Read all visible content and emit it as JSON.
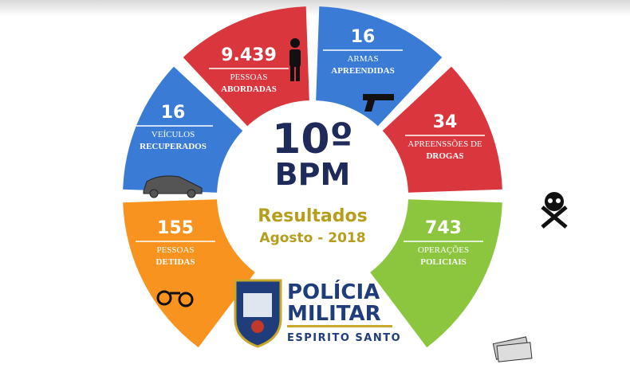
{
  "center": {
    "title_line1": "10º",
    "title_line2": "BPM",
    "subtitle": "Resultados",
    "period": "Agosto - 2018"
  },
  "segments": [
    {
      "value": "9.439",
      "label_top": "PESSOAS",
      "label_bottom": "ABORDADAS"
    },
    {
      "value": "16",
      "label_top": "ARMAS",
      "label_bottom": "APREENDIDAS"
    },
    {
      "value": "16",
      "label_top": "VEÍCULOS",
      "label_bottom": "RECUPERADOS"
    },
    {
      "value": "34",
      "label_top": "APREENSSÕES DE",
      "label_bottom": "DROGAS"
    },
    {
      "value": "155",
      "label_top": "PESSOAS",
      "label_bottom": "DETIDAS"
    },
    {
      "value": "743",
      "label_top": "OPERAÇÕES",
      "label_bottom": "POLICIAIS"
    }
  ],
  "logo": {
    "line1": "POLÍCIA",
    "line2": "MILITAR",
    "line3": "ESPIRITO SANTO"
  }
}
